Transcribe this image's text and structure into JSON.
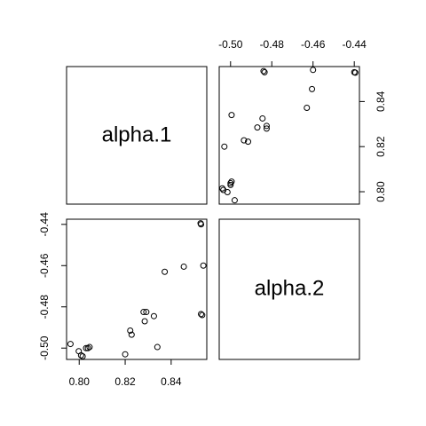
{
  "chart_data": {
    "type": "scatter",
    "variables": [
      "alpha.1",
      "alpha.2"
    ],
    "x_ticks": {
      "alpha.1": [
        "0.80",
        "0.82",
        "0.84"
      ],
      "alpha.2": [
        "-0.50",
        "-0.48",
        "-0.46",
        "-0.44"
      ]
    },
    "ranges": {
      "alpha.1": [
        0.7945,
        0.8555
      ],
      "alpha.2": [
        -0.5055,
        -0.4375
      ]
    },
    "points": [
      {
        "a1": 0.7962,
        "a2": -0.498
      },
      {
        "a1": 0.7998,
        "a2": -0.5015
      },
      {
        "a1": 0.8015,
        "a2": -0.504
      },
      {
        "a1": 0.8008,
        "a2": -0.5035
      },
      {
        "a1": 0.803,
        "a2": -0.5
      },
      {
        "a1": 0.8045,
        "a2": -0.4995
      },
      {
        "a1": 0.8038,
        "a2": -0.5
      },
      {
        "a1": 0.82,
        "a2": -0.503
      },
      {
        "a1": 0.8228,
        "a2": -0.4935
      },
      {
        "a1": 0.8222,
        "a2": -0.4915
      },
      {
        "a1": 0.8285,
        "a2": -0.487
      },
      {
        "a1": 0.8292,
        "a2": -0.4825
      },
      {
        "a1": 0.828,
        "a2": -0.4825
      },
      {
        "a1": 0.8325,
        "a2": -0.4845
      },
      {
        "a1": 0.834,
        "a2": -0.4995
      },
      {
        "a1": 0.8372,
        "a2": -0.463
      },
      {
        "a1": 0.8455,
        "a2": -0.4605
      },
      {
        "a1": 0.853,
        "a2": -0.44
      },
      {
        "a1": 0.8528,
        "a2": -0.4395
      },
      {
        "a1": 0.854,
        "a2": -0.46
      },
      {
        "a1": 0.8535,
        "a2": -0.484
      },
      {
        "a1": 0.853,
        "a2": -0.4835
      }
    ]
  }
}
